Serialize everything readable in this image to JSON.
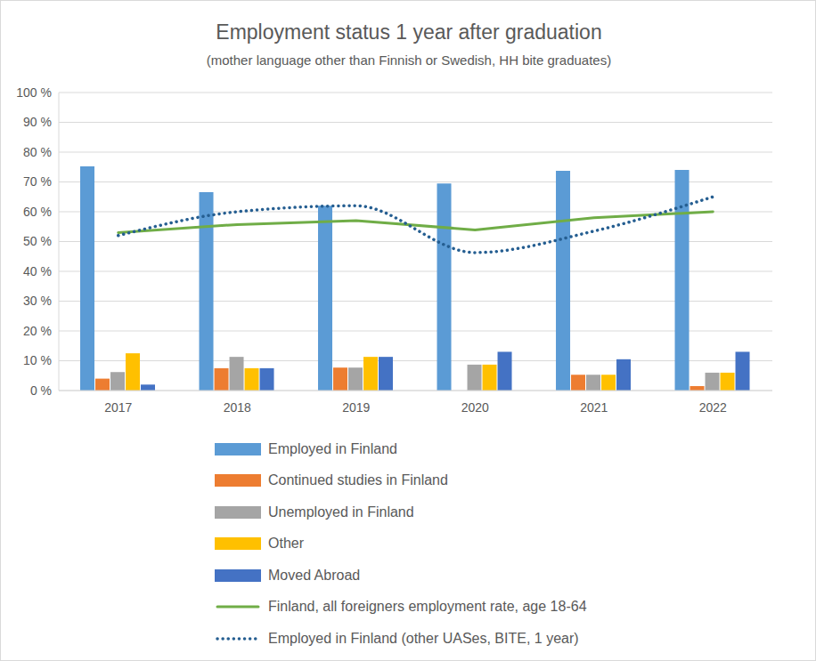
{
  "chart_data": {
    "type": "bar",
    "title": "Employment status 1 year after graduation",
    "subtitle": "(mother language other than Finnish or Swedish, HH bite graduates)",
    "categories": [
      "2017",
      "2018",
      "2019",
      "2020",
      "2021",
      "2022"
    ],
    "series": [
      {
        "name": "Employed in Finland",
        "type": "bar",
        "color": "#5b9bd5",
        "values": [
          75.2,
          66.6,
          62,
          69.5,
          73.7,
          74
        ]
      },
      {
        "name": "Continued studies in Finland",
        "type": "bar",
        "color": "#ed7d31",
        "values": [
          4,
          7.5,
          7.7,
          0,
          5.3,
          1.5
        ]
      },
      {
        "name": "Unemployed in Finland",
        "type": "bar",
        "color": "#a5a5a5",
        "values": [
          6.2,
          11.3,
          7.7,
          8.7,
          5.3,
          6
        ]
      },
      {
        "name": "Other",
        "type": "bar",
        "color": "#ffc000",
        "values": [
          12.5,
          7.5,
          11.3,
          8.7,
          5.3,
          6
        ]
      },
      {
        "name": "Moved Abroad",
        "type": "bar",
        "color": "#4472c4",
        "values": [
          2,
          7.5,
          11.3,
          13,
          10.5,
          13
        ]
      },
      {
        "name": "Finland, all foreigners employment rate, age 18-64",
        "type": "line",
        "color": "#70ad47",
        "line_style": "solid",
        "marker": "none",
        "values": [
          53,
          55.7,
          57,
          53.9,
          58,
          60
        ]
      },
      {
        "name": "Employed in Finland (other UASes, BITE, 1 year)",
        "type": "line",
        "color": "#255e91",
        "line_style": "dotted",
        "marker": "none",
        "values": [
          52,
          60,
          62,
          46.3,
          53.5,
          65
        ]
      }
    ],
    "ylim": [
      0,
      100
    ],
    "yticks": [
      {
        "value": 0,
        "label": "0 %"
      },
      {
        "value": 10,
        "label": "10 %"
      },
      {
        "value": 20,
        "label": "20 %"
      },
      {
        "value": 30,
        "label": "30 %"
      },
      {
        "value": 40,
        "label": "40 %"
      },
      {
        "value": 50,
        "label": "50 %"
      },
      {
        "value": 60,
        "label": "60 %"
      },
      {
        "value": 70,
        "label": "70 %"
      },
      {
        "value": 80,
        "label": "80 %"
      },
      {
        "value": 90,
        "label": "90 %"
      },
      {
        "value": 100,
        "label": "100 %"
      }
    ],
    "grid": true,
    "legend": "bottom"
  }
}
